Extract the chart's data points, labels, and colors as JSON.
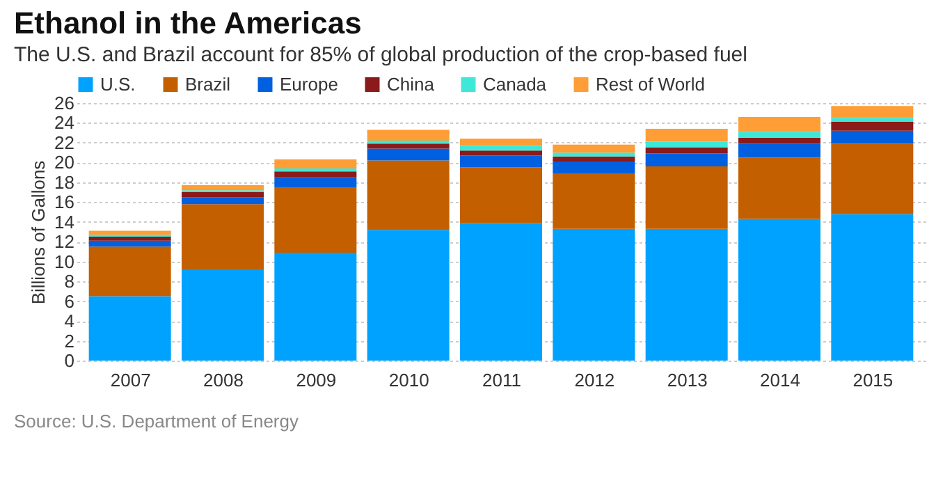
{
  "chart_data": {
    "type": "bar",
    "title": "Ethanol in the Americas",
    "subtitle": "The U.S. and Brazil account for 85% of global production of the crop-based fuel",
    "ylabel": "Billions of Gallons",
    "annotations": [
      "Source: U.S. Department of Energy"
    ],
    "categories": [
      "2007",
      "2008",
      "2009",
      "2010",
      "2011",
      "2012",
      "2013",
      "2014",
      "2015"
    ],
    "stacked": true,
    "series": [
      {
        "name": "U.S.",
        "color": "#00a2ff",
        "values": [
          6.5,
          9.2,
          10.9,
          13.2,
          13.9,
          13.3,
          13.3,
          14.3,
          14.8
        ]
      },
      {
        "name": "Brazil",
        "color": "#c45f00",
        "values": [
          5.0,
          6.6,
          6.6,
          7.0,
          5.6,
          5.6,
          6.3,
          6.2,
          7.1
        ]
      },
      {
        "name": "Europe",
        "color": "#0060df",
        "values": [
          0.6,
          0.7,
          1.0,
          1.2,
          1.2,
          1.2,
          1.3,
          1.4,
          1.3
        ]
      },
      {
        "name": "China",
        "color": "#8b1a1a",
        "values": [
          0.4,
          0.5,
          0.6,
          0.5,
          0.5,
          0.5,
          0.6,
          0.6,
          0.9
        ]
      },
      {
        "name": "Canada",
        "color": "#3ee8d8",
        "values": [
          0.2,
          0.2,
          0.3,
          0.3,
          0.5,
          0.4,
          0.6,
          0.6,
          0.4
        ]
      },
      {
        "name": "Rest of World",
        "color": "#ff9d36",
        "values": [
          0.4,
          0.5,
          0.9,
          1.1,
          0.7,
          0.8,
          1.3,
          1.5,
          1.2
        ]
      }
    ],
    "ylim": [
      0,
      26
    ],
    "yticks": [
      0,
      2,
      4,
      6,
      8,
      10,
      12,
      14,
      16,
      18,
      20,
      22,
      24,
      26
    ],
    "grid": "y",
    "legend": "top left"
  }
}
